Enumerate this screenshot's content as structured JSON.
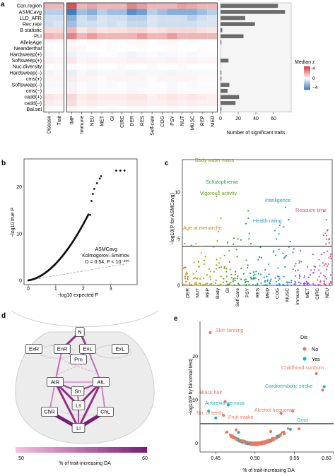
{
  "panel_a": {
    "letter": "a",
    "rows": [
      "Con.region",
      "ASMCavg",
      "LLD_AFR",
      "Rec.rate",
      "B statistic",
      "PLI",
      "AlleleAge",
      "Neanderthal",
      "Hardsweep(+)",
      "Softsweep(+)",
      "Nuc.diversity",
      "Hardsweep(−)",
      "cms(+)",
      "Softsweep(−)",
      "cms(−)",
      "cadd(+)",
      "cadd(−)",
      "Bal.sel"
    ],
    "cols": [
      "Disease",
      "Trait",
      "IMP",
      "Immune",
      "NEU",
      "MET",
      "GI",
      "CIRC",
      "DER",
      "RES",
      "Self-care",
      "COG",
      "PSY",
      "NUT",
      "MUSC",
      "REP",
      "MED"
    ],
    "legend_title": "Median z",
    "legend_ticks": [
      "4",
      "0",
      "−4"
    ],
    "bar_xlabel": "Number of significant traits",
    "bar_ticks": [
      "0",
      "20",
      "40",
      "60"
    ],
    "colors": {
      "high": "#d63a3a",
      "low": "#3f7fc0",
      "bar": "#6b6b6b"
    }
  },
  "panel_b": {
    "letter": "b",
    "xlabel": "−log10 expected P",
    "ylabel": "−log10 true P",
    "xticks": [
      "0",
      "1",
      "2",
      "3"
    ],
    "yticks": [
      "0",
      "10",
      "20"
    ],
    "annotation": [
      "ASMCavg",
      "Kolmogorov–Smirnov",
      "D = 0.54, P < 10⁻¹⁰⁰"
    ]
  },
  "panel_c": {
    "letter": "c",
    "ylabel": "−log10(P for ASMCavg)",
    "yticks": [
      "0",
      "5",
      "10"
    ],
    "categories": [
      "DER",
      "NUT",
      "REP",
      "Body",
      "GI",
      "Self-care",
      "PSY",
      "RES",
      "MED",
      "COG",
      "MUSC",
      "Immune",
      "MET",
      "CIRC",
      "NEU"
    ],
    "labels": [
      {
        "text": "Body water mass",
        "color": "#9a9a10"
      },
      {
        "text": "Schizophrenia",
        "color": "#1fa24a"
      },
      {
        "text": "Vigorous activity",
        "color": "#6da21f"
      },
      {
        "text": "Intelligence",
        "color": "#1a9ad6"
      },
      {
        "text": "Health rating",
        "color": "#1a9ad6"
      },
      {
        "text": "Reaction time",
        "color": "#e0508a"
      },
      {
        "text": "Age at menarche",
        "color": "#c98a1a"
      }
    ]
  },
  "panel_d": {
    "letter": "d",
    "nodes": [
      "N",
      "ExR",
      "EnR",
      "EnL",
      "ExL",
      "Prn",
      "AIR",
      "AIL",
      "Sn",
      "Ls",
      "ChR",
      "ChL",
      "Li"
    ],
    "colorbar_label": "% of trait-increasing DA",
    "colorbar_ticks": [
      "50",
      "60"
    ]
  },
  "panel_e": {
    "letter": "e",
    "xlabel": "% of trait-increasing DA",
    "ylabel": "−log10(P by binomial test)",
    "xticks": [
      "0.45",
      "0.50",
      "0.55",
      "0.60"
    ],
    "yticks": [
      "0",
      "10",
      "20"
    ],
    "legend_title": "Dis",
    "legend_items": [
      {
        "label": "No",
        "color": "#f07560"
      },
      {
        "label": "Yes",
        "color": "#1fb3b3"
      }
    ],
    "labels": [
      {
        "text": "Skin tanning",
        "color": "#f07560"
      },
      {
        "text": "Childhood sunburn",
        "color": "#f07560"
      },
      {
        "text": "Cardioembolic stroke",
        "color": "#1fb3b3"
      },
      {
        "text": "Black hair",
        "color": "#f07560"
      },
      {
        "text": "Anorexia nervosa",
        "color": "#1fb3b3"
      },
      {
        "text": "No. of teeth",
        "color": "#f07560"
      },
      {
        "text": "Fruit intake",
        "color": "#f07560"
      },
      {
        "text": "Alcohol frequency",
        "color": "#f07560"
      },
      {
        "text": "Gout",
        "color": "#1fb3b3"
      }
    ]
  },
  "chart_data": [
    {
      "type": "heatmap",
      "rows": [
        "Con.region",
        "ASMCavg",
        "LLD_AFR",
        "Rec.rate",
        "B statistic",
        "PLI",
        "AlleleAge",
        "Neanderthal",
        "Hardsweep(+)",
        "Softsweep(+)",
        "Nuc.diversity",
        "Hardsweep(−)",
        "cms(+)",
        "Softsweep(−)",
        "cms(−)",
        "cadd(+)",
        "cadd(−)",
        "Bal.sel"
      ],
      "cols": [
        "Disease",
        "Trait",
        "IMP",
        "Immune",
        "NEU",
        "MET",
        "GI",
        "CIRC",
        "DER",
        "RES",
        "Self-care",
        "COG",
        "PSY",
        "NUT",
        "MUSC",
        "REP",
        "MED"
      ],
      "values": [
        [
          1.5,
          1.5,
          3.5,
          1.5,
          1.8,
          1.5,
          1.5,
          1.5,
          2.5,
          2,
          1.5,
          1.5,
          1.5,
          2,
          1.8,
          1.5,
          1.5
        ],
        [
          -1.5,
          -1.5,
          -5,
          -2,
          -2.5,
          -1.5,
          -2,
          -2,
          -3.5,
          -3,
          -1.5,
          -2,
          -2.5,
          -2.5,
          -2.5,
          -2,
          -1.5
        ],
        [
          -1,
          -1,
          -2.5,
          -1,
          -1.5,
          -0.8,
          -1,
          -1,
          -1.5,
          -1.5,
          -0.8,
          -1,
          -1,
          -1,
          -1.5,
          -1,
          -0.8
        ],
        [
          -1,
          -0.8,
          -2,
          -1,
          -1,
          -0.8,
          -1,
          -0.8,
          -1.2,
          -1.2,
          -0.8,
          -1,
          -1,
          -1,
          -1,
          -0.8,
          -0.8
        ],
        [
          0.8,
          0.8,
          1.5,
          0.5,
          0.8,
          0.5,
          0.6,
          0.6,
          0.8,
          0.8,
          0.5,
          0.6,
          0.8,
          0.8,
          0.8,
          0.6,
          0.5
        ],
        [
          1.5,
          1.3,
          2.5,
          1.5,
          2,
          1.5,
          1.5,
          1.5,
          1.5,
          2,
          1.5,
          1.5,
          2,
          1.5,
          1.5,
          1.5,
          1.5
        ],
        [
          0.1,
          0.1,
          0.2,
          0,
          0.1,
          0,
          0.1,
          0,
          0.1,
          0.1,
          0,
          0.1,
          0.1,
          0,
          0.1,
          0,
          0
        ],
        [
          0.1,
          0,
          0.2,
          0.1,
          0,
          0,
          0.1,
          0,
          0,
          0.1,
          0,
          0,
          0.1,
          0,
          0,
          0.1,
          0
        ],
        [
          -0.2,
          -0.1,
          -0.4,
          -0.2,
          -0.2,
          -0.1,
          -0.1,
          -0.2,
          -0.3,
          -0.2,
          -0.1,
          -0.2,
          -0.2,
          -0.1,
          -0.2,
          -0.1,
          -0.1
        ],
        [
          0.3,
          0.2,
          0.5,
          0.2,
          0.3,
          0.2,
          0.2,
          0.2,
          0.3,
          0.3,
          0.2,
          0.2,
          0.3,
          0.2,
          0.3,
          0.2,
          0.2
        ],
        [
          0,
          0.1,
          0.1,
          0,
          0.1,
          0,
          0,
          0.1,
          0,
          0,
          0.1,
          0,
          0,
          0.1,
          0,
          0,
          0
        ],
        [
          -0.3,
          -0.2,
          -0.5,
          -0.2,
          -0.3,
          -0.2,
          -0.2,
          -0.2,
          -0.3,
          -0.2,
          -0.2,
          -0.2,
          -0.3,
          -0.2,
          -0.2,
          -0.2,
          -0.2
        ],
        [
          0.2,
          0.2,
          0.4,
          0.2,
          0.2,
          0.1,
          0.2,
          0.2,
          0.2,
          0.2,
          0.1,
          0.2,
          0.2,
          0.2,
          0.2,
          0.1,
          0.1
        ],
        [
          -0.2,
          -0.2,
          -0.3,
          -0.1,
          -0.2,
          -0.1,
          -0.2,
          -0.1,
          -0.2,
          -0.2,
          -0.1,
          -0.1,
          -0.2,
          -0.1,
          -0.2,
          -0.1,
          -0.1
        ],
        [
          0.1,
          0.1,
          0.3,
          0.1,
          0.2,
          0.1,
          0.1,
          0.1,
          0.2,
          0.1,
          0.1,
          0.1,
          0.2,
          0.1,
          0.1,
          0.1,
          0.1
        ],
        [
          0.5,
          0.4,
          0.8,
          0.4,
          0.5,
          0.4,
          0.4,
          0.4,
          0.5,
          0.5,
          0.3,
          0.4,
          0.5,
          0.4,
          0.5,
          0.4,
          0.3
        ],
        [
          0.4,
          0.3,
          0.7,
          0.3,
          0.4,
          0.3,
          0.3,
          0.3,
          0.4,
          0.4,
          0.3,
          0.3,
          0.4,
          0.3,
          0.4,
          0.3,
          0.3
        ],
        [
          0.1,
          0,
          0.2,
          0,
          0.1,
          0,
          0.1,
          0,
          0.1,
          0.1,
          0,
          0,
          0.1,
          0,
          0.1,
          0,
          0
        ]
      ],
      "color_range": [
        -4,
        4
      ]
    },
    {
      "type": "bar",
      "categories": [
        "Con.region",
        "ASMCavg",
        "LLD_AFR",
        "Rec.rate",
        "B statistic",
        "PLI",
        "AlleleAge",
        "Neanderthal",
        "Hardsweep(+)",
        "Softsweep(+)",
        "Nuc.diversity",
        "Hardsweep(−)",
        "cms(+)",
        "Softsweep(−)",
        "cms(−)",
        "cadd(+)",
        "cadd(−)",
        "Bal.sel"
      ],
      "values": [
        65,
        73,
        28,
        39,
        2,
        26,
        1,
        0,
        0,
        9,
        0,
        1,
        1,
        10,
        8,
        21,
        17,
        1
      ],
      "xlabel": "Number of significant traits",
      "xlim": [
        0,
        80
      ]
    },
    {
      "type": "scatter",
      "series_name": "ASMCavg",
      "xlabel": "−log10 expected P",
      "ylabel": "−log10 true P",
      "xlim": [
        0,
        3.6
      ],
      "ylim": [
        0,
        26
      ]
    },
    {
      "type": "scatter",
      "ylabel": "−log10(P for ASMCavg)",
      "ylim": [
        0,
        13.5
      ],
      "categories": [
        "DER",
        "NUT",
        "REP",
        "Body",
        "GI",
        "Self-care",
        "PSY",
        "RES",
        "MED",
        "COG",
        "MUSC",
        "Immune",
        "MET",
        "CIRC",
        "NEU"
      ],
      "threshold": 4.2
    },
    {
      "type": "scatter",
      "xlabel": "% of trait-increasing DA",
      "ylabel": "−log10(P by binomial test)",
      "xlim": [
        0.43,
        0.6
      ],
      "ylim": [
        -2,
        28
      ],
      "threshold": 4.5,
      "points": [
        {
          "x": 0.443,
          "y": 25.4,
          "g": "No"
        },
        {
          "x": 0.578,
          "y": 16.0,
          "g": "No"
        },
        {
          "x": 0.588,
          "y": 13.0,
          "g": "Yes"
        },
        {
          "x": 0.586,
          "y": 12.2,
          "g": "No"
        },
        {
          "x": 0.462,
          "y": 9.6,
          "g": "No"
        },
        {
          "x": 0.466,
          "y": 8.8,
          "g": "Yes"
        },
        {
          "x": 0.46,
          "y": 6.4,
          "g": "No"
        },
        {
          "x": 0.533,
          "y": 6.9,
          "g": "No"
        },
        {
          "x": 0.548,
          "y": 7.4,
          "g": "No"
        },
        {
          "x": 0.545,
          "y": 3.2,
          "g": "Yes"
        },
        {
          "x": 0.441,
          "y": 7.4,
          "g": "Yes"
        },
        {
          "x": 0.45,
          "y": 5.8,
          "g": "Yes"
        },
        {
          "x": 0.476,
          "y": 3.1,
          "g": "No"
        },
        {
          "x": 0.479,
          "y": 2.5,
          "g": "Yes"
        },
        {
          "x": 0.52,
          "y": 2.7,
          "g": "No"
        },
        {
          "x": 0.529,
          "y": 1.6,
          "g": "Yes"
        },
        {
          "x": 0.537,
          "y": 2.2,
          "g": "No"
        },
        {
          "x": 0.556,
          "y": 3.3,
          "g": "No"
        }
      ]
    }
  ]
}
